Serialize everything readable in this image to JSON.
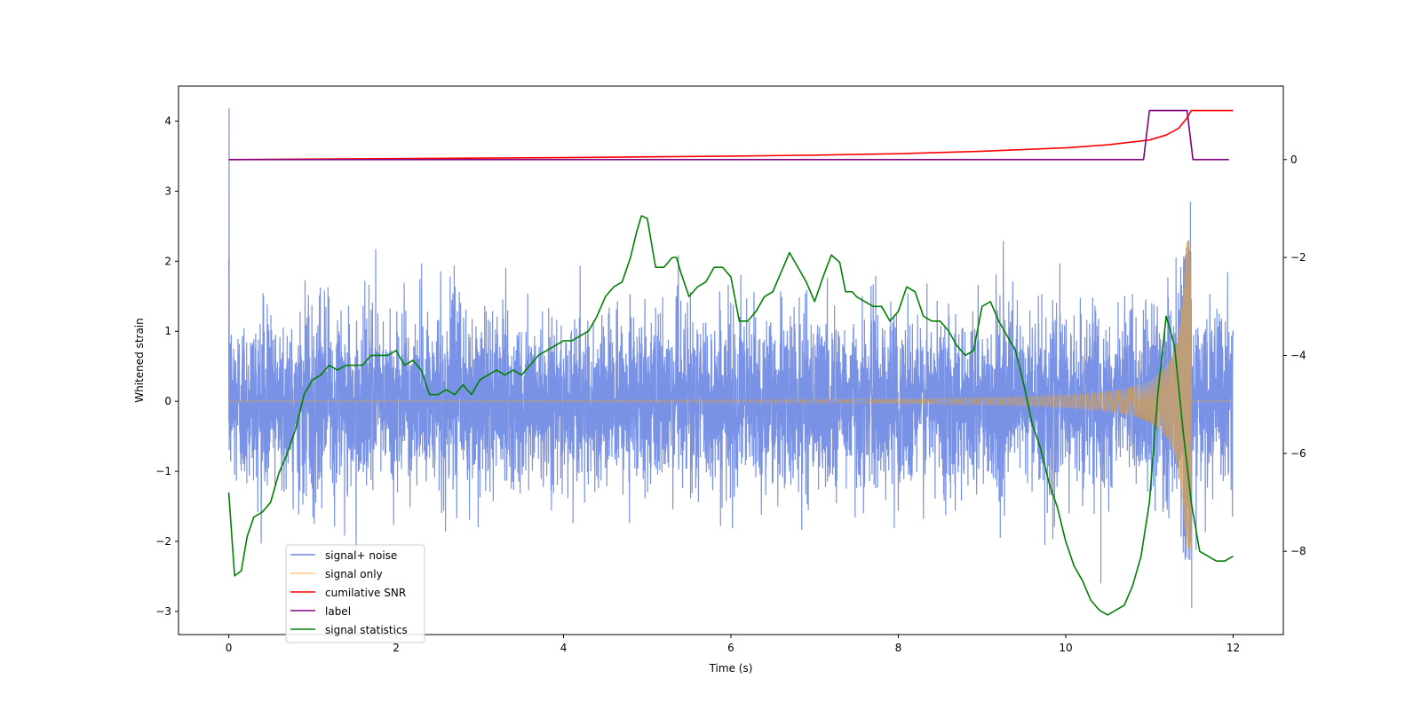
{
  "chart_data": {
    "type": "line",
    "xlabel": "Time (s)",
    "ylabel": "Whitened strain",
    "xlim": [
      -0.6,
      12.6
    ],
    "ylim": [
      -3.33,
      4.5
    ],
    "ylim_right": [
      -9.7,
      1.5
    ],
    "x_ticks": [
      0,
      2,
      4,
      6,
      8,
      10,
      12
    ],
    "y_ticks": [
      -3,
      -2,
      -1,
      0,
      1,
      2,
      3,
      4
    ],
    "y_ticks_right": [
      -8,
      -6,
      -4,
      -2,
      0
    ],
    "grid": false,
    "legend_position": "lower-left",
    "series": [
      {
        "name": "signal+ noise",
        "axis": "left",
        "color": "#6a86e2",
        "description_level": {
          "noise_amplitude_typical": 0.9,
          "noise_peak": 2.3,
          "initial_spike": 4.18,
          "late_peaks": [
            2.85,
            -2.95
          ],
          "time_range": [
            0,
            12
          ]
        }
      },
      {
        "name": "signal only",
        "axis": "left",
        "color": "#f5a623",
        "chirp": {
          "t_start": 0,
          "t_merger": 11.5,
          "t_end": 12,
          "peak_amplitude": 2.3,
          "min_trough": -2.1,
          "initial_amplitude": 0.01
        }
      },
      {
        "name": "cumilative SNR",
        "axis": "right",
        "color": "#ff0000",
        "x": [
          0,
          2,
          4,
          6,
          7,
          8,
          9,
          10,
          10.5,
          11,
          11.2,
          11.35,
          11.45,
          11.5,
          12
        ],
        "y": [
          0,
          0.02,
          0.04,
          0.07,
          0.09,
          0.12,
          0.17,
          0.24,
          0.3,
          0.4,
          0.5,
          0.64,
          0.85,
          1.0,
          1.0
        ]
      },
      {
        "name": "label",
        "axis": "right",
        "color": "#800080",
        "x": [
          0,
          10.93,
          11.0,
          11.45,
          11.52,
          11.95
        ],
        "y": [
          0,
          0,
          1,
          1,
          0,
          0
        ]
      },
      {
        "name": "signal statistics",
        "axis": "right",
        "color": "#008000",
        "x": [
          0,
          0.07,
          0.15,
          0.22,
          0.3,
          0.4,
          0.5,
          0.6,
          0.7,
          0.8,
          0.9,
          1.0,
          1.1,
          1.2,
          1.3,
          1.4,
          1.5,
          1.6,
          1.7,
          1.8,
          1.9,
          2.0,
          2.1,
          2.2,
          2.3,
          2.4,
          2.5,
          2.6,
          2.7,
          2.8,
          2.9,
          3.0,
          3.1,
          3.2,
          3.3,
          3.4,
          3.5,
          3.6,
          3.7,
          3.8,
          3.9,
          4.0,
          4.1,
          4.2,
          4.3,
          4.4,
          4.5,
          4.6,
          4.7,
          4.8,
          4.87,
          4.93,
          5.0,
          5.1,
          5.2,
          5.3,
          5.35,
          5.4,
          5.5,
          5.6,
          5.7,
          5.8,
          5.9,
          6.0,
          6.1,
          6.2,
          6.3,
          6.4,
          6.5,
          6.6,
          6.7,
          6.8,
          6.9,
          7.0,
          7.1,
          7.2,
          7.3,
          7.37,
          7.45,
          7.5,
          7.6,
          7.7,
          7.8,
          7.9,
          8.0,
          8.1,
          8.2,
          8.3,
          8.4,
          8.5,
          8.6,
          8.7,
          8.8,
          8.9,
          9.0,
          9.1,
          9.2,
          9.3,
          9.4,
          9.5,
          9.6,
          9.7,
          9.8,
          9.9,
          10.0,
          10.1,
          10.2,
          10.3,
          10.4,
          10.5,
          10.6,
          10.7,
          10.8,
          10.9,
          11.0,
          11.1,
          11.2,
          11.3,
          11.4,
          11.5,
          11.6,
          11.7,
          11.8,
          11.9,
          12.0
        ],
        "y": [
          -6.8,
          -8.5,
          -8.4,
          -7.7,
          -7.3,
          -7.2,
          -7.0,
          -6.4,
          -6.0,
          -5.5,
          -4.8,
          -4.5,
          -4.4,
          -4.2,
          -4.3,
          -4.2,
          -4.2,
          -4.2,
          -4.0,
          -4.0,
          -4.0,
          -3.9,
          -4.2,
          -4.1,
          -4.3,
          -4.8,
          -4.8,
          -4.7,
          -4.8,
          -4.6,
          -4.8,
          -4.5,
          -4.4,
          -4.3,
          -4.4,
          -4.3,
          -4.4,
          -4.2,
          -4.0,
          -3.9,
          -3.8,
          -3.7,
          -3.7,
          -3.6,
          -3.5,
          -3.2,
          -2.8,
          -2.6,
          -2.5,
          -2.0,
          -1.5,
          -1.15,
          -1.2,
          -2.2,
          -2.2,
          -2.0,
          -2.0,
          -2.3,
          -2.8,
          -2.6,
          -2.5,
          -2.2,
          -2.2,
          -2.4,
          -3.3,
          -3.3,
          -3.1,
          -2.8,
          -2.7,
          -2.3,
          -1.9,
          -2.2,
          -2.5,
          -2.9,
          -2.4,
          -1.95,
          -2.1,
          -2.7,
          -2.7,
          -2.8,
          -2.9,
          -3.0,
          -3.0,
          -3.3,
          -3.1,
          -2.6,
          -2.7,
          -3.2,
          -3.3,
          -3.3,
          -3.5,
          -3.8,
          -4.0,
          -3.9,
          -3.0,
          -2.9,
          -3.3,
          -3.6,
          -3.9,
          -4.6,
          -5.4,
          -5.9,
          -6.6,
          -7.1,
          -7.8,
          -8.3,
          -8.6,
          -9.0,
          -9.2,
          -9.3,
          -9.2,
          -9.1,
          -8.7,
          -8.1,
          -7.0,
          -4.8,
          -3.2,
          -3.8,
          -5.5,
          -7.0,
          -8.0,
          -8.1,
          -8.2,
          -8.2,
          -8.1
        ]
      }
    ]
  }
}
